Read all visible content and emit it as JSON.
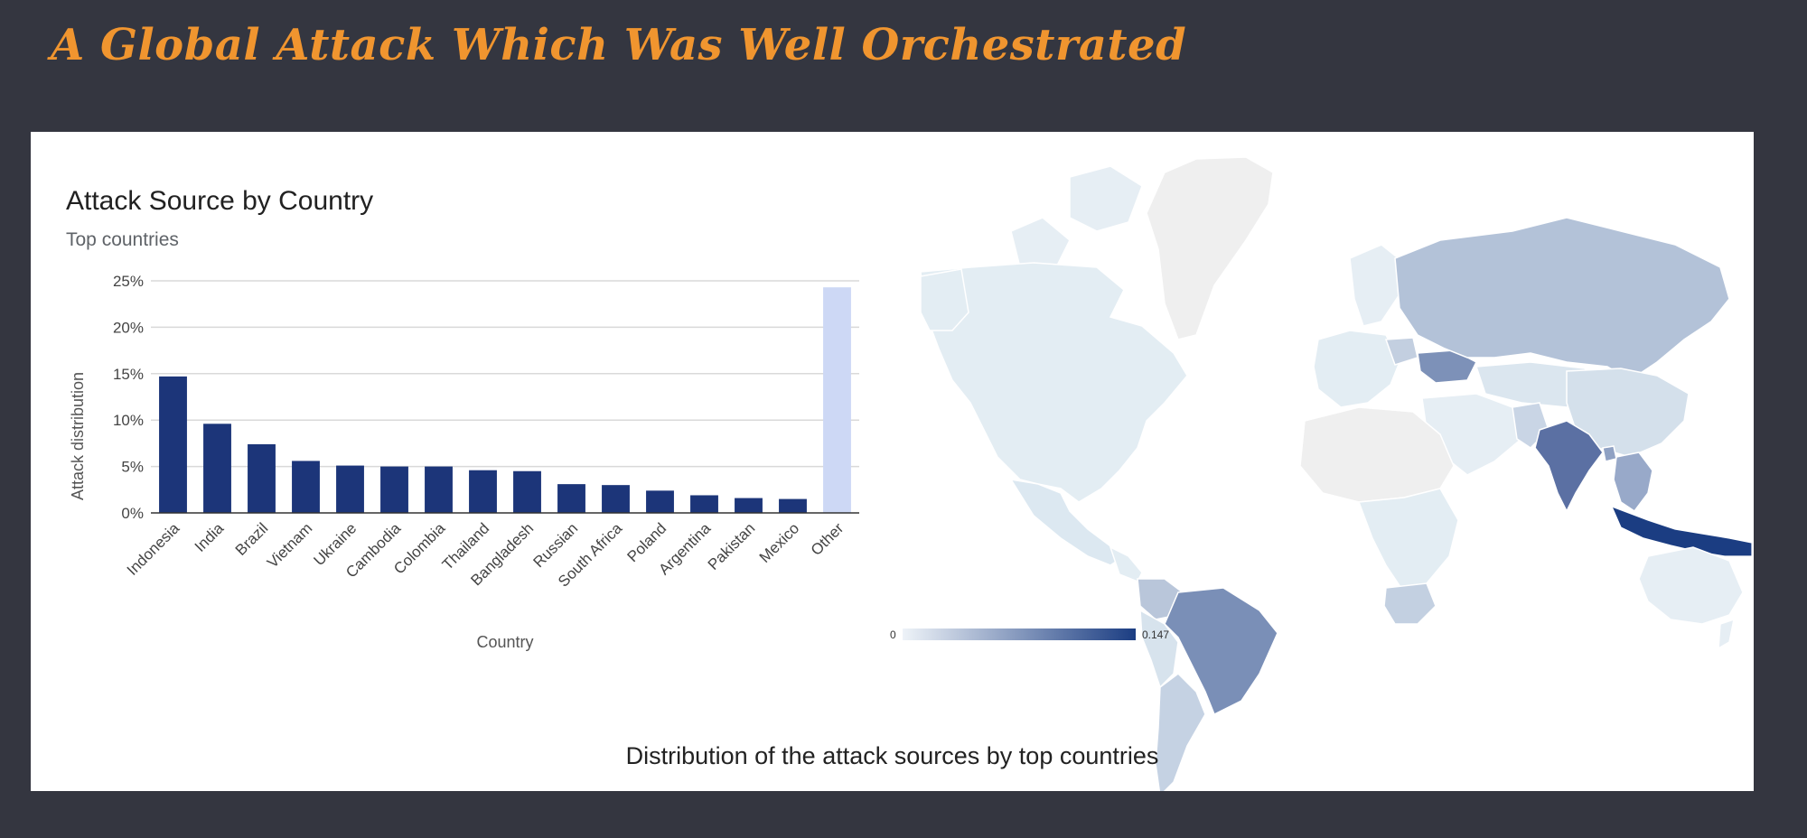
{
  "slide": {
    "title": "A Global Attack Which Was Well Orchestrated"
  },
  "caption": "Distribution of the attack sources by top countries",
  "colors": {
    "bar": "#1c3579",
    "other_bar": "#cdd8f5",
    "map_max": "#1b3d82",
    "map_min": "#e8f1f7",
    "background": "#343640",
    "title": "#f0952f"
  },
  "chart_data": [
    {
      "type": "bar",
      "title": "Attack Source by Country",
      "subtitle": "Top countries",
      "xlabel": "Country",
      "ylabel": "Attack distribution",
      "ylim": [
        0,
        25
      ],
      "yticks": [
        "0%",
        "5%",
        "10%",
        "15%",
        "20%",
        "25%"
      ],
      "grid": true,
      "categories": [
        "Indonesia",
        "India",
        "Brazil",
        "Vietnam",
        "Ukraine",
        "Cambodia",
        "Colombia",
        "Thailand",
        "Bangladesh",
        "Russian",
        "South Africa",
        "Poland",
        "Argentina",
        "Pakistan",
        "Mexico",
        "Other"
      ],
      "values": [
        14.7,
        9.6,
        7.4,
        5.6,
        5.1,
        5.0,
        5.0,
        4.6,
        4.5,
        3.1,
        3.0,
        2.4,
        1.9,
        1.6,
        1.5,
        24.3
      ]
    },
    {
      "type": "heatmap",
      "subtype": "choropleth-map",
      "legend_min": "0",
      "legend_max": "0.147",
      "values": {
        "Indonesia": 0.147,
        "India": 0.096,
        "Brazil": 0.074,
        "Vietnam": 0.056,
        "Ukraine": 0.051,
        "Cambodia": 0.05,
        "Colombia": 0.05,
        "Thailand": 0.046,
        "Bangladesh": 0.045,
        "Russian": 0.031,
        "South Africa": 0.03,
        "Poland": 0.024,
        "Argentina": 0.019,
        "Pakistan": 0.016,
        "Mexico": 0.015
      }
    }
  ]
}
